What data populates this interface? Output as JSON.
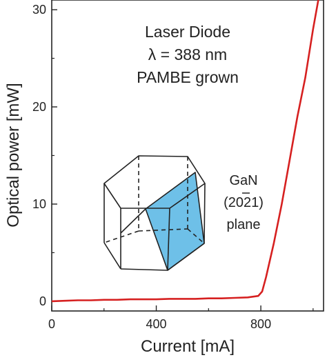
{
  "chart_data": {
    "type": "line",
    "xlabel": "Current [mA]",
    "ylabel": "Optical power [mW]",
    "xlim": [
      0,
      1040
    ],
    "ylim": [
      -1,
      31
    ],
    "x_ticks": [
      0,
      400,
      800
    ],
    "y_ticks": [
      0,
      10,
      20,
      30
    ],
    "grid": false,
    "line_color": "#d62020",
    "series": [
      {
        "x": [
          0,
          50,
          100,
          150,
          200,
          250,
          300,
          350,
          400,
          450,
          500,
          550,
          600,
          650,
          700,
          750,
          790,
          805,
          820,
          850,
          880,
          910,
          940,
          970,
          1000,
          1020
        ],
        "values": [
          0.0,
          0.05,
          0.1,
          0.1,
          0.15,
          0.15,
          0.2,
          0.2,
          0.2,
          0.25,
          0.25,
          0.25,
          0.3,
          0.3,
          0.35,
          0.4,
          0.55,
          1.0,
          2.5,
          6.0,
          10.0,
          14.5,
          19.0,
          23.0,
          28.0,
          31.0
        ]
      }
    ],
    "annotations": {
      "title_lines": [
        "Laser Diode",
        "λ = 388 nm",
        "PAMBE grown"
      ],
      "crystal_label_lines": [
        "GaN",
        "(2021)",
        "plane"
      ],
      "crystal_plane_color": "#6ec0e8"
    }
  }
}
